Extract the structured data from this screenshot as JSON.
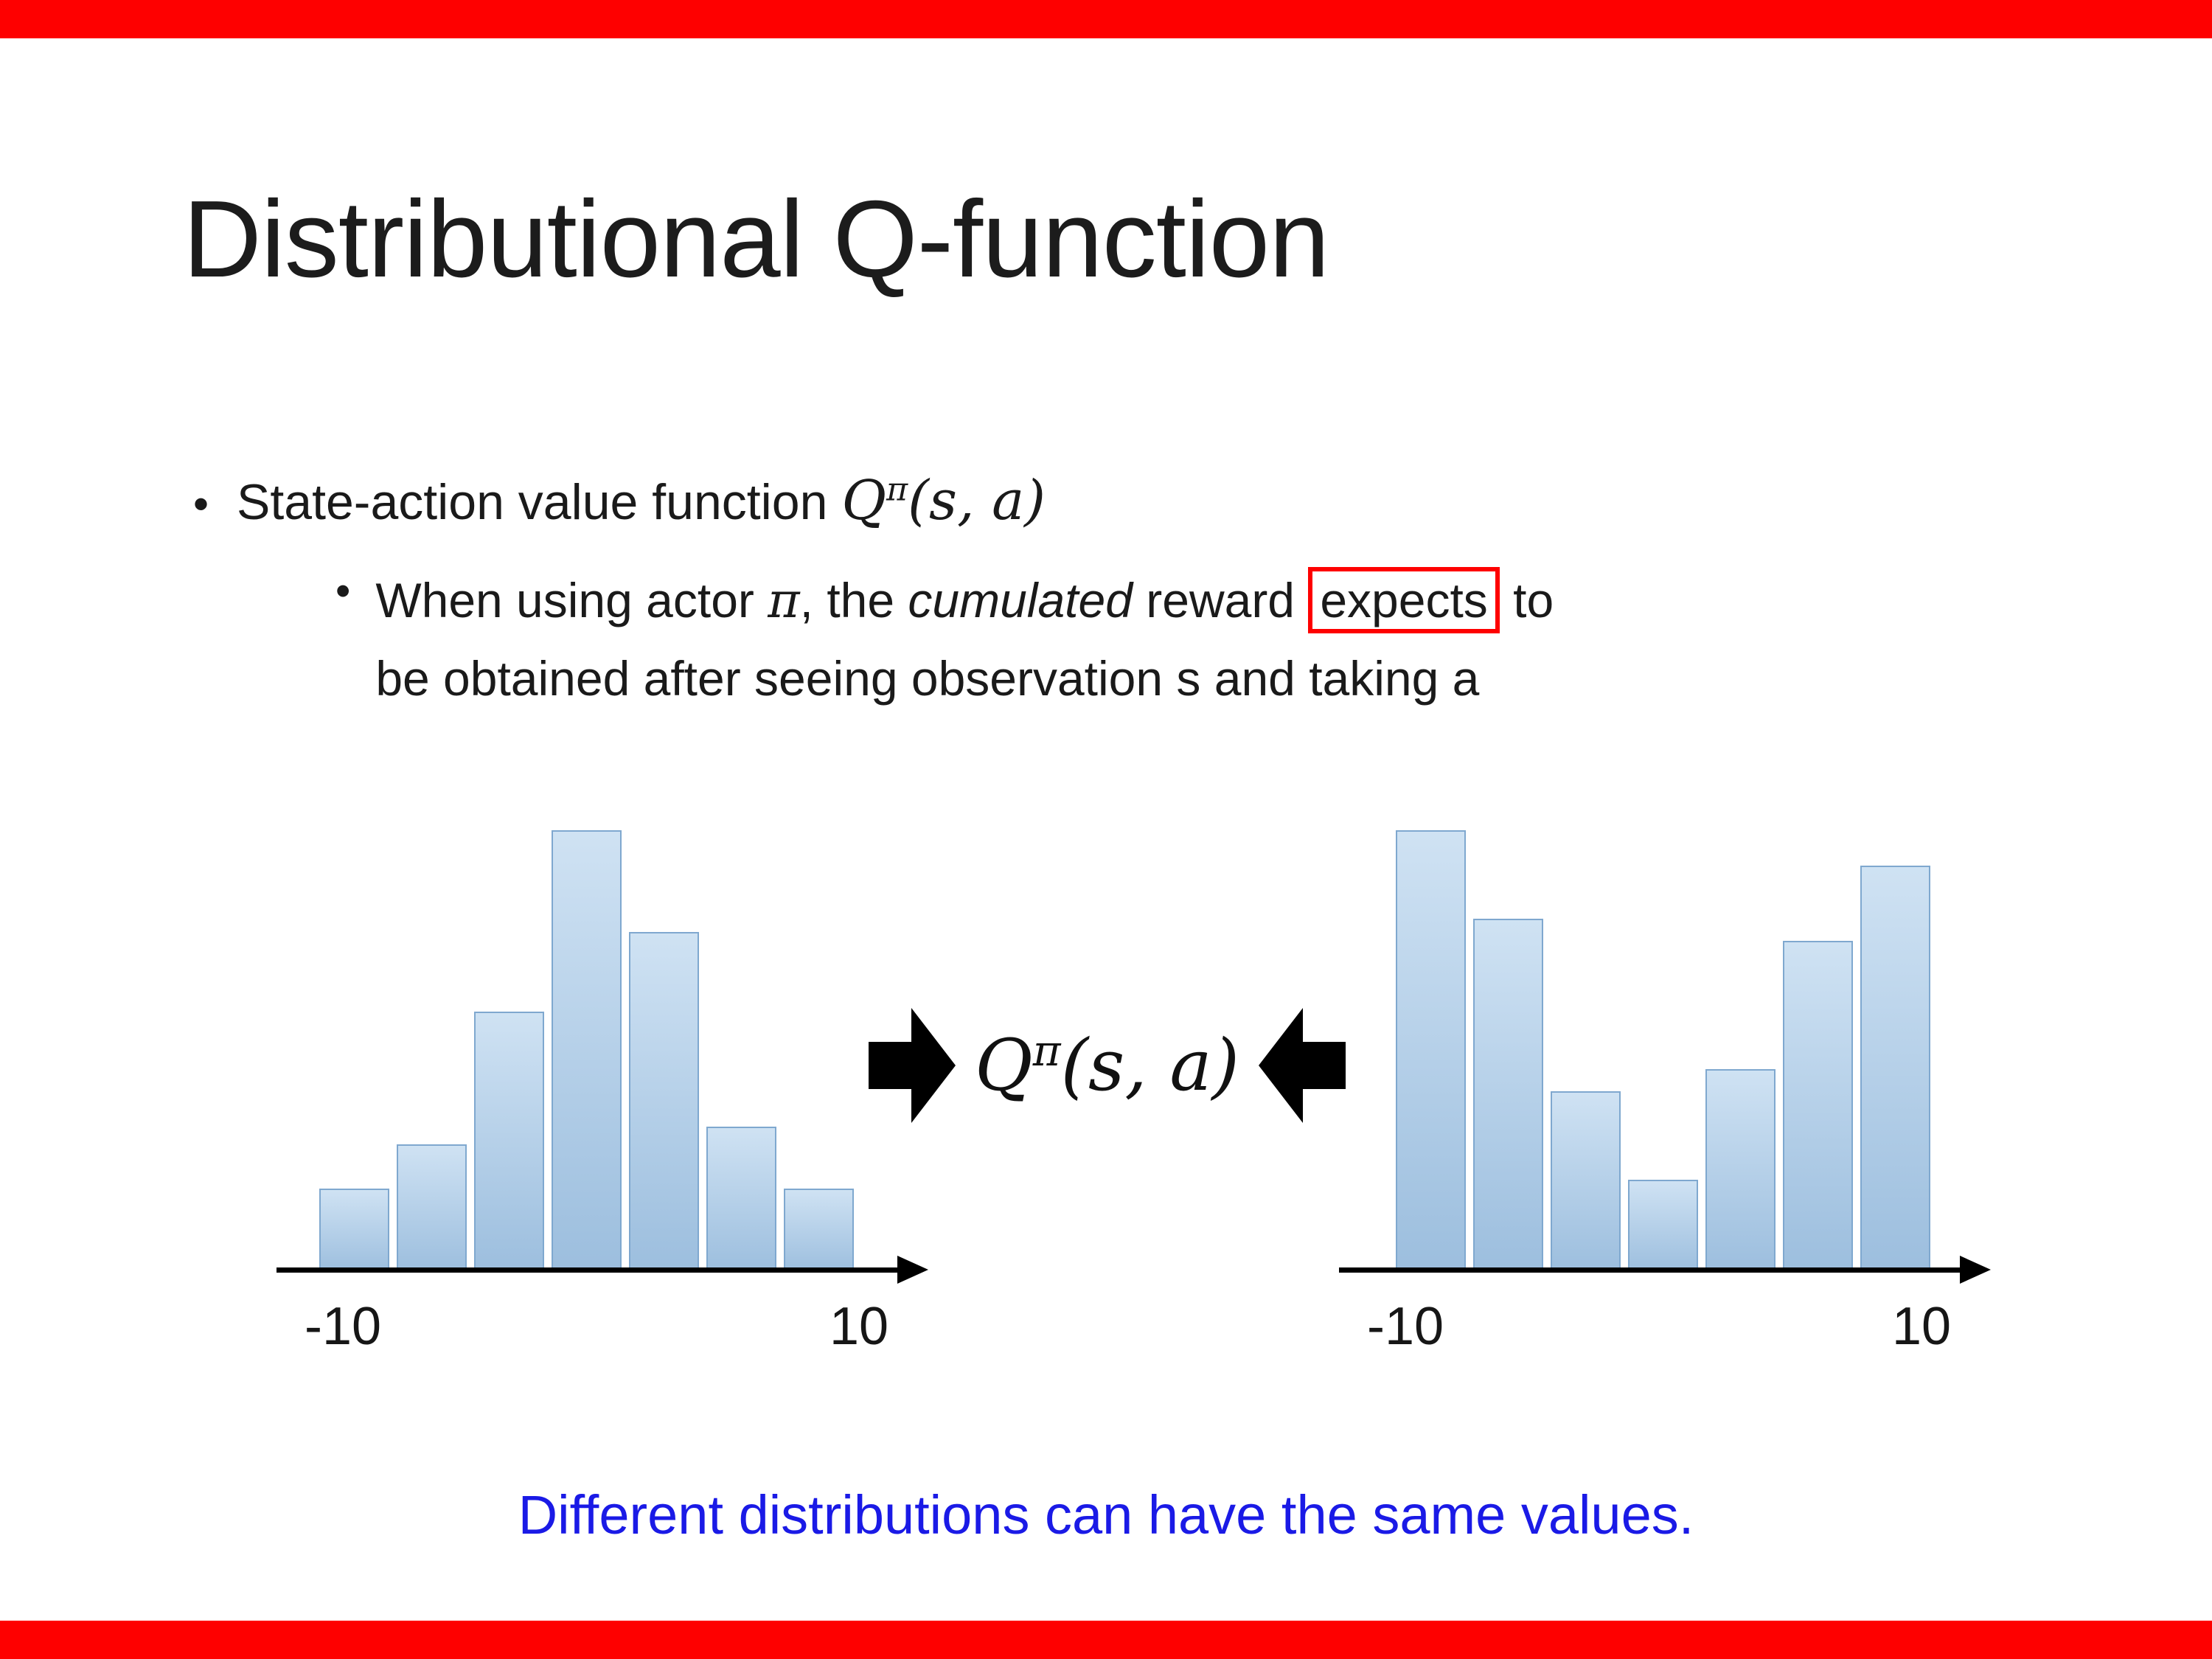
{
  "slide": {
    "title": "Distributional Q-function",
    "footer": "Different distributions can have the same values."
  },
  "bullets": {
    "marker": "•",
    "b1": {
      "text": "State-action value function ",
      "math_q": "Q",
      "math_sup": "π",
      "math_args": "(s, a)"
    },
    "b2": {
      "seg1": "When using actor ",
      "pi": "π",
      "seg2": ", the ",
      "emph": "cumulated",
      "seg3": " reward ",
      "boxed": "expects",
      "seg4": " to",
      "line2": "be obtained after seeing observation s and taking a"
    }
  },
  "center_label": {
    "q": "Q",
    "sup": "π",
    "args": "(s, a)"
  },
  "colors": {
    "accent_red": "#FE0000",
    "footer_blue": "#1A1AE6",
    "bar_fill_top": "#CFE2F3",
    "bar_fill_bottom": "#9CBEDE",
    "bar_border": "#7FA8CF",
    "axis_black": "#000000"
  },
  "chart_data": [
    {
      "type": "bar",
      "name": "left-unimodal-distribution",
      "values": [
        0.19,
        0.29,
        0.59,
        1.0,
        0.77,
        0.33,
        0.19
      ],
      "x_tick_labels": [
        "-10",
        "10"
      ],
      "x_range": [
        -10,
        10
      ],
      "ylim": [
        0,
        1
      ],
      "grid": false,
      "legend": false
    },
    {
      "type": "bar",
      "name": "right-bimodal-distribution",
      "values": [
        1.0,
        0.8,
        0.41,
        0.21,
        0.46,
        0.75,
        0.92
      ],
      "x_tick_labels": [
        "-10",
        "10"
      ],
      "x_range": [
        -10,
        10
      ],
      "ylim": [
        0,
        1
      ],
      "grid": false,
      "legend": false
    }
  ]
}
